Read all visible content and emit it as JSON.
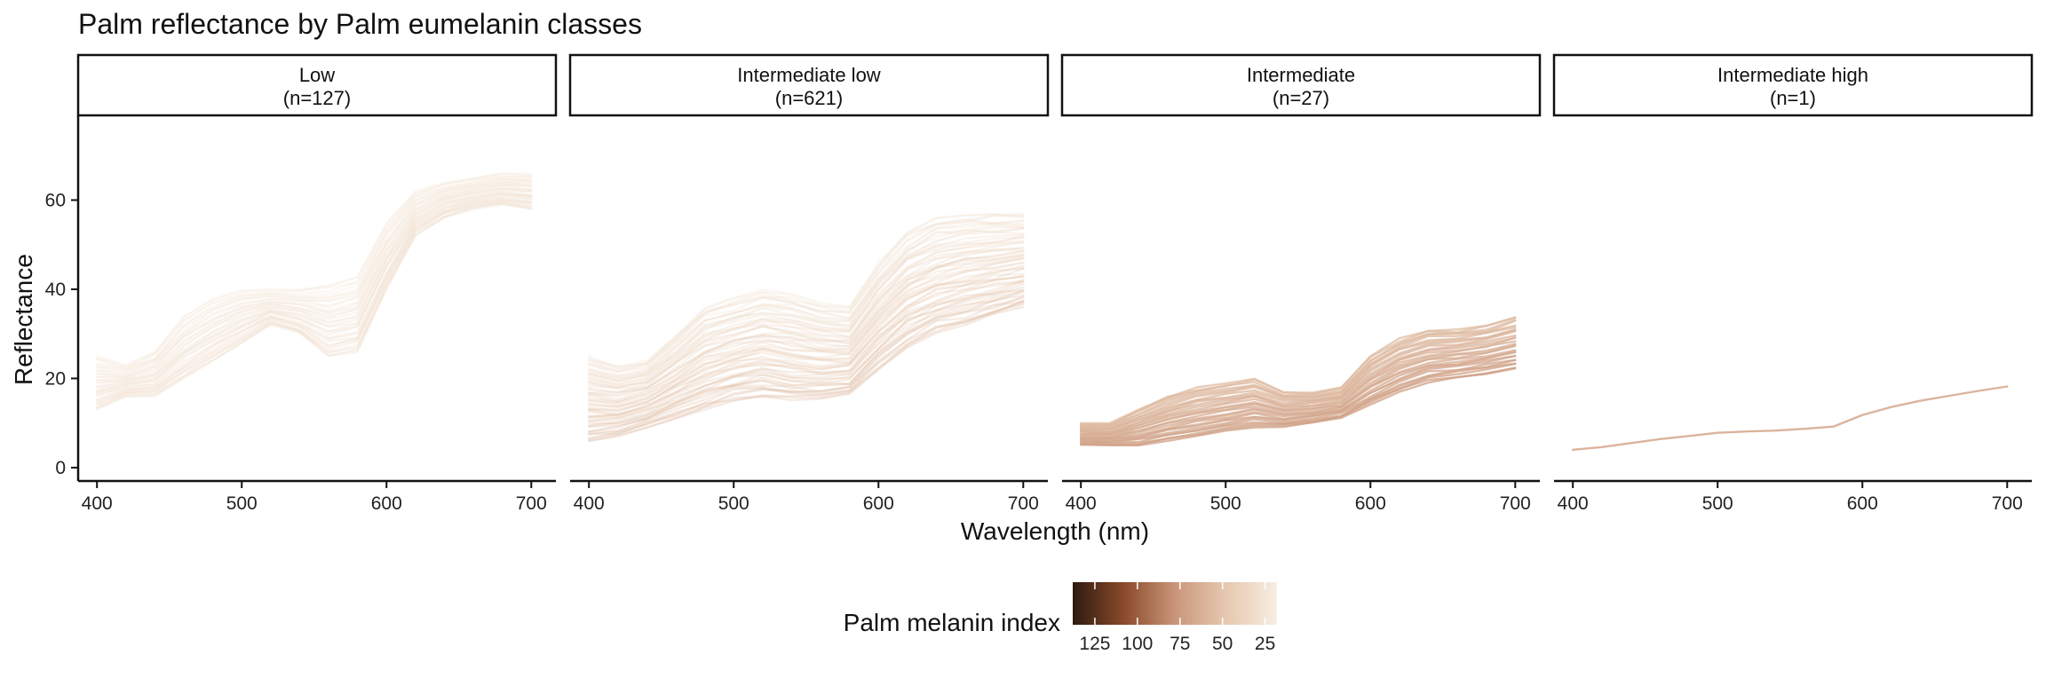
{
  "chart_data": {
    "type": "line",
    "title": "Palm reflectance by Palm eumelanin classes",
    "xlabel": "Wavelength (nm)",
    "ylabel": "Reflectance",
    "xlim": [
      387,
      717
    ],
    "ylim": [
      -3,
      79
    ],
    "xticks": [
      400,
      500,
      600,
      700
    ],
    "yticks": [
      0,
      20,
      40,
      60
    ],
    "wavelengths": [
      400,
      420,
      440,
      460,
      480,
      500,
      520,
      540,
      560,
      580,
      600,
      620,
      640,
      660,
      680,
      700
    ],
    "legend": {
      "title": "Palm melanin index",
      "ticks": [
        125,
        100,
        75,
        50,
        25
      ],
      "range": [
        138,
        18
      ],
      "colors": [
        "#2e1a10",
        "#8a4a2a",
        "#c9957a",
        "#e6c8b0",
        "#f7eee2"
      ],
      "placement": "bottom"
    },
    "panels": [
      {
        "label": "Low",
        "count": "(n=127)",
        "melanin_index": [
          20,
          32
        ],
        "profiles": {
          "high": [
            25,
            23,
            26,
            34,
            38,
            40,
            40,
            40,
            41,
            43,
            55,
            62,
            64,
            65,
            66,
            66
          ],
          "low": [
            13,
            16,
            16,
            20,
            24,
            28,
            32,
            30,
            25,
            26,
            40,
            52,
            56,
            58,
            59,
            58
          ]
        },
        "line_count": 34
      },
      {
        "label": "Intermediate low",
        "count": "(n=621)",
        "melanin_index": [
          28,
          58
        ],
        "profiles": {
          "high": [
            25,
            23,
            24,
            30,
            36,
            38,
            40,
            39,
            37,
            36,
            46,
            53,
            56,
            57,
            57,
            57
          ],
          "low": [
            6,
            7,
            9,
            11,
            13,
            15,
            16,
            15,
            15,
            16,
            22,
            27,
            30,
            32,
            34,
            36
          ]
        },
        "line_count": 60
      },
      {
        "label": "Intermediate",
        "count": "(n=27)",
        "melanin_index": [
          55,
          72
        ],
        "profiles": {
          "high": [
            10,
            10,
            13,
            16,
            18,
            19,
            20,
            17,
            17,
            18,
            25,
            29,
            31,
            31,
            32,
            34
          ],
          "low": [
            5,
            5,
            5,
            6,
            7,
            8,
            9,
            9,
            10,
            11,
            14,
            17,
            19,
            20,
            21,
            22
          ]
        },
        "line_count": 27
      },
      {
        "label": "Intermediate high",
        "count": "(n=1)",
        "melanin_index": [
          62,
          62
        ],
        "series": [
          {
            "name": "Intermediate high sample",
            "values": [
              4,
              4.6,
              5.5,
              6.4,
              7.1,
              7.8,
              8.1,
              8.3,
              8.7,
              9.2,
              11.8,
              13.6,
              15,
              16.1,
              17.2,
              18.2
            ]
          }
        ],
        "line_count": 1
      }
    ]
  }
}
